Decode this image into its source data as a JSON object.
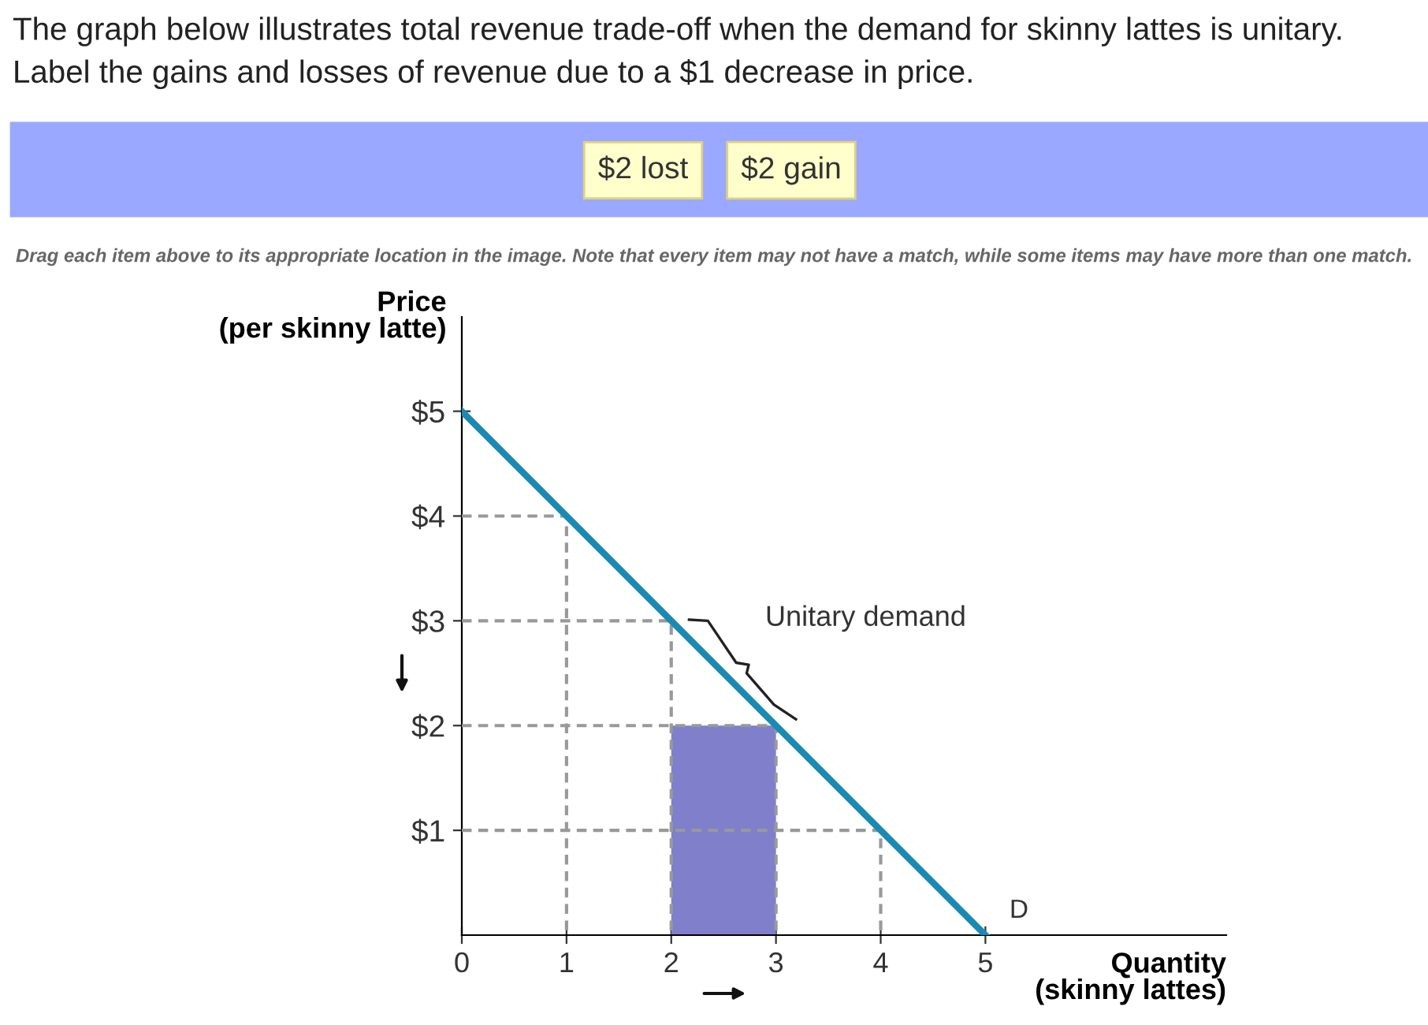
{
  "chart_data": {
    "type": "line",
    "title": "The graph below illustrates total revenue trade-off when the demand for skinny lattes is unitary.",
    "subtitle": "Label the gains and losses of revenue due to a $1 decrease in price.",
    "xlabel": "Quantity\n(skinny lattes)",
    "ylabel": "Price\n(per skinny latte)",
    "annotations": [
      "$2 lost",
      "$2 gain",
      "Drag each item above to its appropriate location in the image. Note that every item may not have a match, while some items may have more than one match.",
      {
        "text": "Unitary demand",
        "x": 2.5,
        "y": 2.5
      },
      {
        "text": "D",
        "x": 5,
        "y": 0
      }
    ],
    "series": [
      {
        "type": "area",
        "color": "#7f7fcc",
        "x": [
          2,
          3
        ],
        "values": [
          2,
          2
        ]
      },
      {
        "color": "#999999",
        "line_style": "dashed",
        "x": [
          0,
          1,
          1
        ],
        "values": [
          4,
          4,
          0
        ]
      },
      {
        "color": "#999999",
        "line_style": "dashed",
        "x": [
          0,
          2,
          2
        ],
        "values": [
          3,
          3,
          0
        ]
      },
      {
        "color": "#999999",
        "line_style": "dashed",
        "x": [
          0,
          3,
          3
        ],
        "values": [
          2,
          2,
          0
        ]
      },
      {
        "color": "#999999",
        "line_style": "dashed",
        "x": [
          0,
          4,
          4
        ],
        "values": [
          1,
          1,
          0
        ]
      },
      {
        "color": "#1a8ab4",
        "line_style": "solid",
        "x": [
          0,
          5
        ],
        "values": [
          5,
          0
        ]
      }
    ],
    "xlim": [
      0,
      7.3
    ],
    "ylim": [
      0,
      5.9
    ],
    "xticks": [
      0,
      1,
      2,
      3,
      4,
      5
    ],
    "yticks": [
      {
        "value": 1,
        "label": "$1"
      },
      {
        "value": 2,
        "label": "$2"
      },
      {
        "value": 3,
        "label": "$3"
      },
      {
        "value": 4,
        "label": "$4"
      },
      {
        "value": 5,
        "label": "$5"
      }
    ],
    "grid": false,
    "legend": false,
    "marker": "none"
  }
}
